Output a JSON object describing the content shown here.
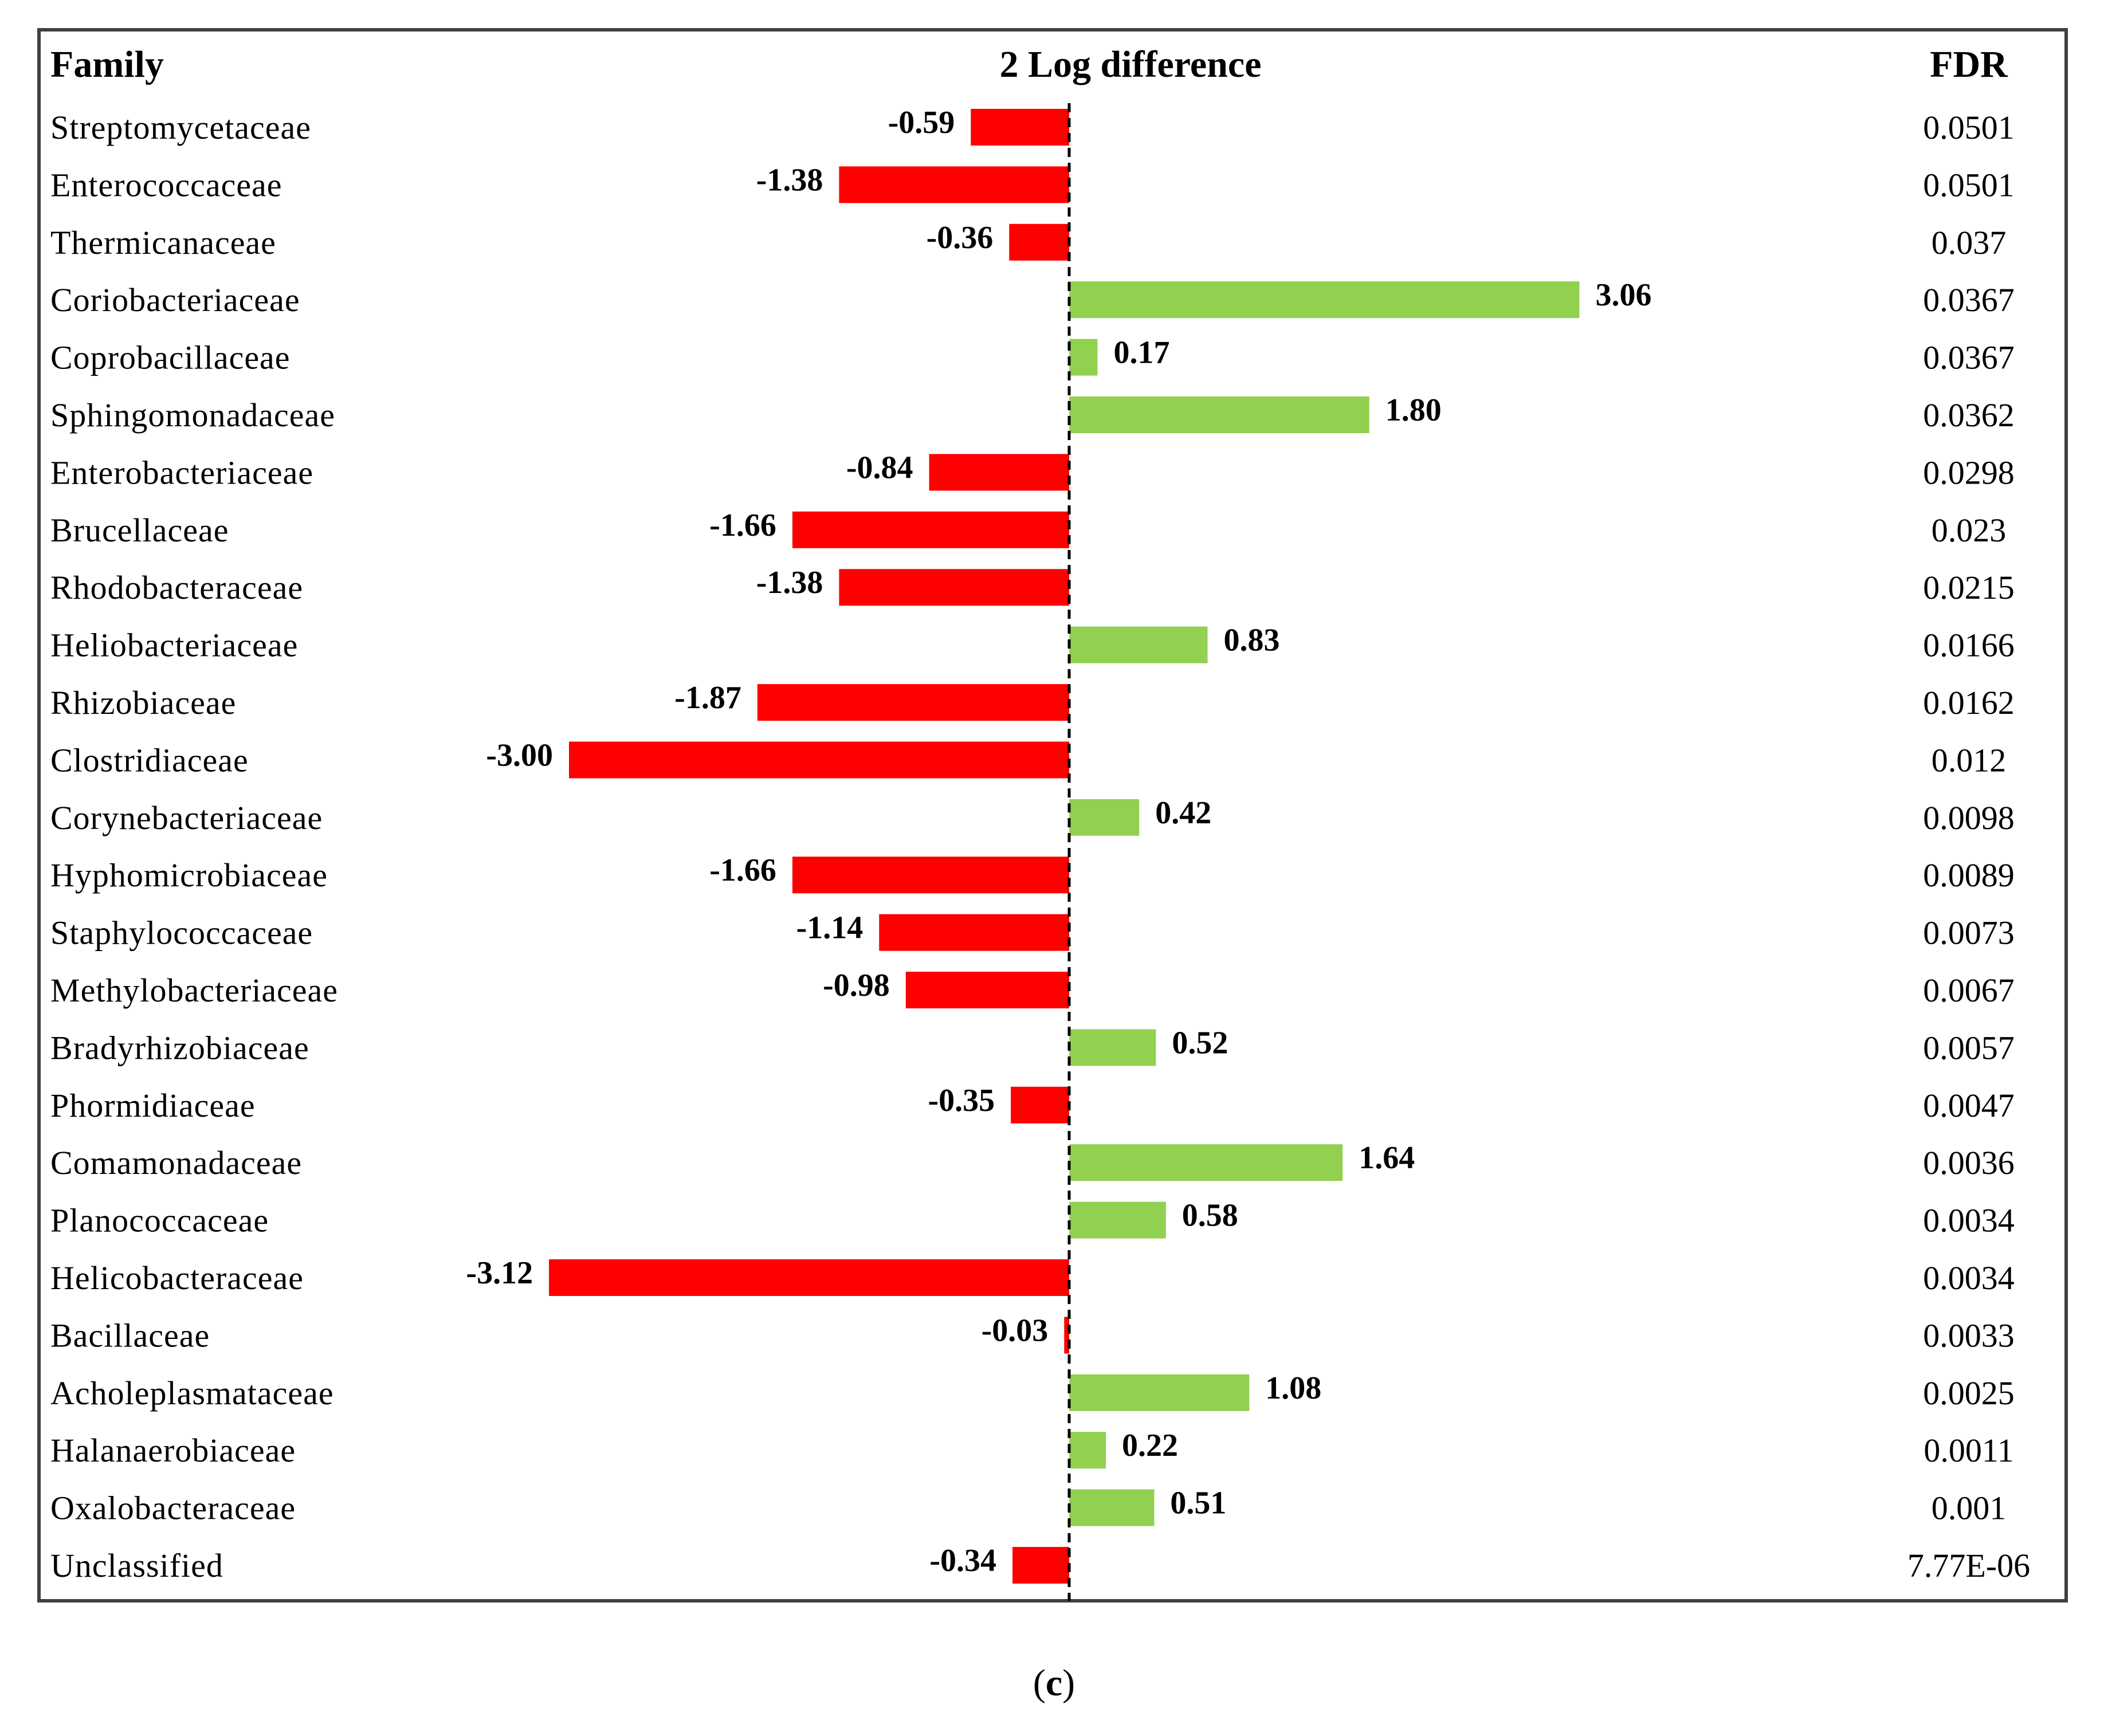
{
  "chart_data": {
    "type": "bar",
    "orientation": "horizontal",
    "headers": {
      "family": "Family",
      "value": "2 Log difference",
      "fdr": "FDR"
    },
    "categories": [
      "Streptomycetaceae",
      "Enterococcaceae",
      "Thermicanaceae",
      "Coriobacteriaceae",
      "Coprobacillaceae",
      "Sphingomonadaceae",
      "Enterobacteriaceae",
      "Brucellaceae",
      "Rhodobacteraceae",
      "Heliobacteriaceae",
      "Rhizobiaceae",
      "Clostridiaceae",
      "Corynebacteriaceae",
      "Hyphomicrobiaceae",
      "Staphylococcaceae",
      "Methylobacteriaceae",
      "Bradyrhizobiaceae",
      "Phormidiaceae",
      "Comamonadaceae",
      "Planococcaceae",
      "Helicobacteraceae",
      "Bacillaceae",
      "Acholeplasmataceae",
      "Halanaerobiaceae",
      "Oxalobacteraceae",
      "Unclassified"
    ],
    "values": [
      -0.59,
      -1.38,
      -0.36,
      3.06,
      0.17,
      1.8,
      -0.84,
      -1.66,
      -1.38,
      0.83,
      -1.87,
      -3.0,
      0.42,
      -1.66,
      -1.14,
      -0.98,
      0.52,
      -0.35,
      1.64,
      0.58,
      -3.12,
      -0.03,
      1.08,
      0.22,
      0.51,
      -0.34
    ],
    "value_labels": [
      "-0.59",
      "-1.38",
      "-0.36",
      "3.06",
      "0.17",
      "1.80",
      "-0.84",
      "-1.66",
      "-1.38",
      "0.83",
      "-1.87",
      "-3.00",
      "0.42",
      "-1.66",
      "-1.14",
      "-0.98",
      "0.52",
      "-0.35",
      "1.64",
      "0.58",
      "-3.12",
      "-0.03",
      "1.08",
      "0.22",
      "0.51",
      "-0.34"
    ],
    "fdr": [
      "0.0501",
      "0.0501",
      "0.037",
      "0.0367",
      "0.0367",
      "0.0362",
      "0.0298",
      "0.023",
      "0.0215",
      "0.0166",
      "0.0162",
      "0.012",
      "0.0098",
      "0.0089",
      "0.0073",
      "0.0067",
      "0.0057",
      "0.0047",
      "0.0036",
      "0.0034",
      "0.0034",
      "0.0033",
      "0.0025",
      "0.0011",
      "0.001",
      "7.77E-06"
    ],
    "xlim": [
      -3.12,
      3.06
    ],
    "colors": {
      "negative": "#ff0000",
      "positive": "#92d050",
      "zero_line": "#000000",
      "frame": "#404040"
    }
  },
  "panel_label": {
    "open": "(",
    "letter": "c",
    "close": ")"
  }
}
